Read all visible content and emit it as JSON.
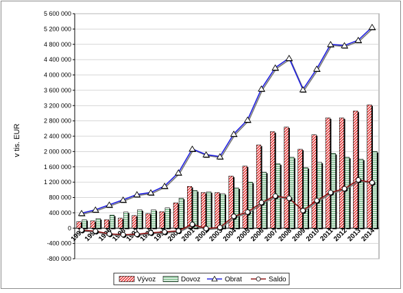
{
  "chart_data": {
    "type": "bar",
    "ylabel": "v tis. EUR",
    "ylim": [
      -800000,
      5600000
    ],
    "ytick_step": 400000,
    "ytick_labels": [
      "-800 000",
      "-400 000",
      "0",
      "400 000",
      "800 000",
      "1 200 000",
      "1 600 000",
      "2 000 000",
      "2 400 000",
      "2 800 000",
      "3 200 000",
      "3 600 000",
      "4 000 000",
      "4 400 000",
      "4 800 000",
      "5 200 000",
      "5 600 000"
    ],
    "grid": true,
    "legend_position": "bottom",
    "categories": [
      "1993",
      "1994",
      "1995",
      "1996",
      "1997",
      "1998",
      "1999",
      "2000",
      "2001",
      "2002",
      "2003",
      "2004",
      "2005",
      "2006",
      "2007",
      "2008",
      "2009",
      "2010",
      "2011",
      "2012",
      "2013",
      "2014"
    ],
    "series": [
      {
        "name": "Vývoz",
        "kind": "bar",
        "pattern": "diagonal-red",
        "values": [
          170000,
          190000,
          220000,
          260000,
          330000,
          380000,
          430000,
          660000,
          1090000,
          930000,
          930000,
          1360000,
          1620000,
          2170000,
          2520000,
          2640000,
          2060000,
          2440000,
          2880000,
          2880000,
          3060000,
          3220000
        ]
      },
      {
        "name": "Dovoz",
        "kind": "bar",
        "pattern": "horizontal-green",
        "values": [
          220000,
          250000,
          340000,
          420000,
          480000,
          480000,
          530000,
          780000,
          980000,
          950000,
          900000,
          1050000,
          1200000,
          1460000,
          1680000,
          1850000,
          1580000,
          1720000,
          1950000,
          1850000,
          1800000,
          2000000
        ]
      },
      {
        "name": "Obrat",
        "kind": "line",
        "color": "#1f1fe0",
        "marker": "triangle",
        "values": [
          390000,
          480000,
          610000,
          740000,
          880000,
          930000,
          1100000,
          1450000,
          2070000,
          1920000,
          1870000,
          2460000,
          2830000,
          3640000,
          4190000,
          4440000,
          3620000,
          4160000,
          4800000,
          4770000,
          4910000,
          5250000
        ]
      },
      {
        "name": "Saldo",
        "kind": "line",
        "color": "#8b1010",
        "marker": "circle",
        "values": [
          -50000,
          -80000,
          -150000,
          -170000,
          -160000,
          -120000,
          -100000,
          -70000,
          100000,
          -10000,
          20000,
          310000,
          420000,
          670000,
          840000,
          780000,
          460000,
          720000,
          930000,
          1030000,
          1260000,
          1190000
        ]
      }
    ]
  }
}
